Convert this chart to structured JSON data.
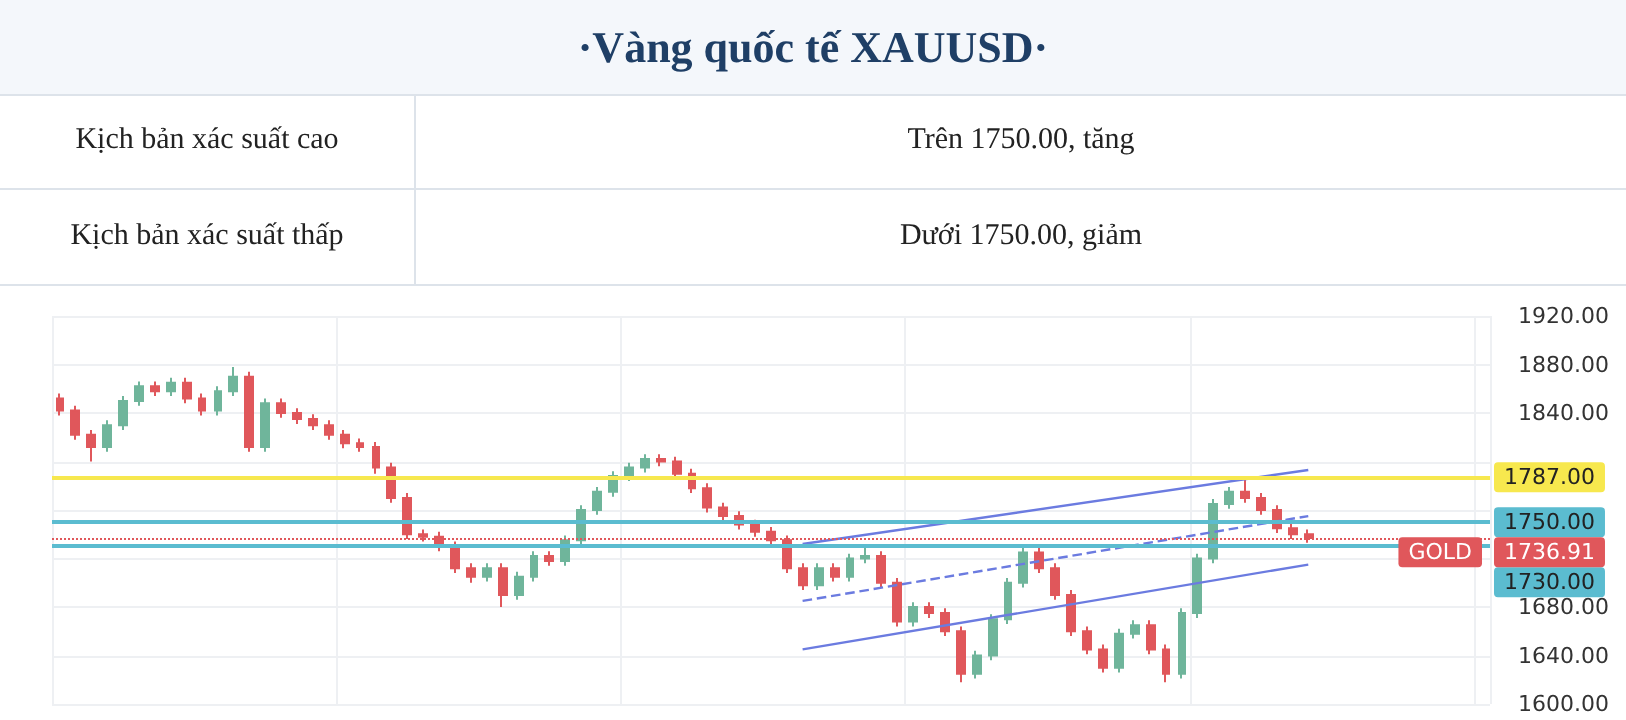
{
  "chart_data": {
    "type": "candlestick",
    "title": "·Vàng quốc tế XAUUSD·",
    "annotations": [
      "Kịch bản xác suất cao",
      "Trên 1750.00, tăng",
      "Kịch bản xác suất thấp",
      "Dưới 1750.00, giảm",
      {
        "text": "GOLD",
        "y": 1736.91
      }
    ],
    "categories": [
      null,
      null,
      null,
      null,
      null,
      null,
      null,
      null,
      null,
      null,
      null,
      null,
      null,
      null,
      null,
      null,
      null,
      null,
      null,
      null,
      null,
      null,
      null,
      null,
      null,
      null,
      null,
      null,
      null,
      null,
      null,
      null,
      null,
      null,
      null,
      null,
      null,
      null,
      null,
      null,
      null,
      null,
      null,
      null,
      null,
      null,
      null,
      null,
      null,
      null,
      null,
      null,
      null,
      null,
      null,
      null,
      null,
      null,
      null,
      null,
      null,
      null,
      null,
      null,
      null,
      null,
      null,
      null,
      null,
      null,
      null,
      null,
      null,
      null,
      null,
      null,
      null,
      null,
      null,
      null,
      null,
      null,
      null,
      null,
      null,
      null,
      null,
      null,
      null,
      null,
      null
    ],
    "ohlc": [
      [
        1852,
        1856,
        1838,
        1842
      ],
      [
        1842,
        1846,
        1818,
        1822
      ],
      [
        1822,
        1826,
        1800,
        1812
      ],
      [
        1812,
        1834,
        1808,
        1830
      ],
      [
        1830,
        1854,
        1826,
        1850
      ],
      [
        1850,
        1866,
        1846,
        1862
      ],
      [
        1862,
        1866,
        1854,
        1858
      ],
      [
        1858,
        1869,
        1854,
        1865
      ],
      [
        1865,
        1869,
        1848,
        1852
      ],
      [
        1852,
        1856,
        1838,
        1842
      ],
      [
        1842,
        1862,
        1838,
        1858
      ],
      [
        1858,
        1878,
        1854,
        1870
      ],
      [
        1870,
        1874,
        1808,
        1812
      ],
      [
        1812,
        1852,
        1808,
        1848
      ],
      [
        1848,
        1852,
        1836,
        1840
      ],
      [
        1840,
        1844,
        1831,
        1835
      ],
      [
        1835,
        1839,
        1826,
        1830
      ],
      [
        1830,
        1834,
        1818,
        1822
      ],
      [
        1822,
        1826,
        1811,
        1815
      ],
      [
        1815,
        1819,
        1808,
        1812
      ],
      [
        1812,
        1816,
        1790,
        1795
      ],
      [
        1795,
        1799,
        1766,
        1770
      ],
      [
        1770,
        1774,
        1736,
        1740
      ],
      [
        1740,
        1744,
        1734,
        1738
      ],
      [
        1738,
        1742,
        1726,
        1730
      ],
      [
        1730,
        1734,
        1708,
        1712
      ],
      [
        1712,
        1716,
        1700,
        1705
      ],
      [
        1705,
        1716,
        1701,
        1712
      ],
      [
        1712,
        1716,
        1680,
        1690
      ],
      [
        1690,
        1709,
        1686,
        1705
      ],
      [
        1705,
        1726,
        1701,
        1722
      ],
      [
        1722,
        1726,
        1714,
        1718
      ],
      [
        1718,
        1739,
        1714,
        1735
      ],
      [
        1735,
        1764,
        1731,
        1760
      ],
      [
        1760,
        1779,
        1756,
        1775
      ],
      [
        1775,
        1792,
        1771,
        1788
      ],
      [
        1788,
        1799,
        1784,
        1795
      ],
      [
        1795,
        1806,
        1791,
        1802
      ],
      [
        1802,
        1806,
        1796,
        1800
      ],
      [
        1800,
        1804,
        1786,
        1790
      ],
      [
        1790,
        1794,
        1774,
        1778
      ],
      [
        1778,
        1782,
        1758,
        1762
      ],
      [
        1762,
        1766,
        1751,
        1755
      ],
      [
        1755,
        1759,
        1744,
        1748
      ],
      [
        1748,
        1752,
        1738,
        1742
      ],
      [
        1742,
        1746,
        1731,
        1735
      ],
      [
        1735,
        1739,
        1708,
        1712
      ],
      [
        1712,
        1716,
        1694,
        1698
      ],
      [
        1698,
        1716,
        1694,
        1712
      ],
      [
        1712,
        1716,
        1701,
        1705
      ],
      [
        1705,
        1724,
        1701,
        1720
      ],
      [
        1720,
        1730,
        1716,
        1722
      ],
      [
        1722,
        1726,
        1696,
        1700
      ],
      [
        1700,
        1704,
        1664,
        1668
      ],
      [
        1668,
        1684,
        1664,
        1680
      ],
      [
        1680,
        1684,
        1671,
        1675
      ],
      [
        1675,
        1679,
        1656,
        1660
      ],
      [
        1660,
        1664,
        1618,
        1625
      ],
      [
        1625,
        1644,
        1621,
        1640
      ],
      [
        1640,
        1674,
        1636,
        1670
      ],
      [
        1670,
        1704,
        1666,
        1700
      ],
      [
        1700,
        1729,
        1696,
        1725
      ],
      [
        1725,
        1729,
        1708,
        1712
      ],
      [
        1712,
        1716,
        1686,
        1690
      ],
      [
        1690,
        1694,
        1656,
        1660
      ],
      [
        1660,
        1664,
        1641,
        1645
      ],
      [
        1645,
        1649,
        1626,
        1630
      ],
      [
        1630,
        1662,
        1626,
        1658
      ],
      [
        1658,
        1669,
        1654,
        1665
      ],
      [
        1665,
        1669,
        1641,
        1645
      ],
      [
        1645,
        1649,
        1618,
        1625
      ],
      [
        1625,
        1679,
        1621,
        1675
      ],
      [
        1675,
        1724,
        1671,
        1720
      ],
      [
        1720,
        1769,
        1716,
        1765
      ],
      [
        1765,
        1779,
        1761,
        1775
      ],
      [
        1775,
        1787,
        1766,
        1770
      ],
      [
        1770,
        1774,
        1756,
        1760
      ],
      [
        1760,
        1764,
        1741,
        1745
      ],
      [
        1745,
        1749,
        1736,
        1740
      ],
      [
        1740,
        1744,
        1733,
        1736.91
      ],
      null,
      null,
      null,
      null,
      null,
      null,
      null,
      null,
      null,
      null,
      null
    ],
    "colors": [
      "#e0575b",
      "#e0575b",
      "#e0575b",
      "#6fb59b",
      "#6fb59b",
      "#6fb59b",
      "#e0575b",
      "#6fb59b",
      "#e0575b",
      "#e0575b",
      "#6fb59b",
      "#6fb59b",
      "#e0575b",
      "#6fb59b",
      "#e0575b",
      "#e0575b",
      "#e0575b",
      "#e0575b",
      "#e0575b",
      "#e0575b",
      "#e0575b",
      "#e0575b",
      "#e0575b",
      "#e0575b",
      "#e0575b",
      "#e0575b",
      "#e0575b",
      "#6fb59b",
      "#e0575b",
      "#6fb59b",
      "#6fb59b",
      "#e0575b",
      "#6fb59b",
      "#6fb59b",
      "#6fb59b",
      "#6fb59b",
      "#6fb59b",
      "#6fb59b",
      "#e0575b",
      "#e0575b",
      "#e0575b",
      "#e0575b",
      "#e0575b",
      "#e0575b",
      "#e0575b",
      "#e0575b",
      "#e0575b",
      "#e0575b",
      "#6fb59b",
      "#e0575b",
      "#6fb59b",
      "#6fb59b",
      "#e0575b",
      "#e0575b",
      "#6fb59b",
      "#e0575b",
      "#e0575b",
      "#e0575b",
      "#6fb59b",
      "#6fb59b",
      "#6fb59b",
      "#6fb59b",
      "#e0575b",
      "#e0575b",
      "#e0575b",
      "#e0575b",
      "#e0575b",
      "#6fb59b",
      "#6fb59b",
      "#e0575b",
      "#e0575b",
      "#6fb59b",
      "#6fb59b",
      "#6fb59b",
      "#6fb59b",
      "#e0575b",
      "#e0575b",
      "#e0575b",
      "#e0575b",
      "#e0575b",
      null,
      null,
      null,
      null,
      null,
      null,
      null,
      null,
      null,
      null,
      null
    ],
    "series": [
      {
        "type": "line",
        "color": "#6b7be0",
        "line_style": "solid",
        "values": [
          null,
          null,
          null,
          null,
          null,
          null,
          null,
          null,
          null,
          null,
          null,
          null,
          null,
          null,
          null,
          null,
          null,
          null,
          null,
          null,
          null,
          null,
          null,
          null,
          null,
          null,
          null,
          null,
          null,
          null,
          null,
          null,
          null,
          null,
          null,
          null,
          null,
          null,
          null,
          null,
          null,
          null,
          null,
          null,
          null,
          null,
          null,
          1732,
          null,
          null,
          null,
          null,
          null,
          null,
          null,
          null,
          null,
          null,
          null,
          null,
          null,
          null,
          null,
          null,
          null,
          null,
          null,
          null,
          null,
          null,
          null,
          null,
          null,
          null,
          null,
          null,
          null,
          null,
          null,
          1793,
          null,
          null,
          null,
          null,
          null,
          null,
          null,
          null,
          null,
          null,
          null
        ]
      },
      {
        "type": "line",
        "color": "#6b7be0",
        "line_style": "dashed",
        "values": [
          null,
          null,
          null,
          null,
          null,
          null,
          null,
          null,
          null,
          null,
          null,
          null,
          null,
          null,
          null,
          null,
          null,
          null,
          null,
          null,
          null,
          null,
          null,
          null,
          null,
          null,
          null,
          null,
          null,
          null,
          null,
          null,
          null,
          null,
          null,
          null,
          null,
          null,
          null,
          null,
          null,
          null,
          null,
          null,
          null,
          null,
          null,
          1685,
          null,
          null,
          null,
          null,
          null,
          null,
          null,
          null,
          null,
          null,
          null,
          null,
          null,
          null,
          null,
          null,
          null,
          null,
          null,
          null,
          null,
          null,
          null,
          null,
          null,
          null,
          null,
          null,
          null,
          null,
          null,
          1755,
          null,
          null,
          null,
          null,
          null,
          null,
          null,
          null,
          null,
          null,
          null
        ]
      },
      {
        "type": "line",
        "color": "#6b7be0",
        "line_style": "solid",
        "values": [
          null,
          null,
          null,
          null,
          null,
          null,
          null,
          null,
          null,
          null,
          null,
          null,
          null,
          null,
          null,
          null,
          null,
          null,
          null,
          null,
          null,
          null,
          null,
          null,
          null,
          null,
          null,
          null,
          null,
          null,
          null,
          null,
          null,
          null,
          null,
          null,
          null,
          null,
          null,
          null,
          null,
          null,
          null,
          null,
          null,
          null,
          null,
          1645,
          null,
          null,
          null,
          null,
          null,
          null,
          null,
          null,
          null,
          null,
          null,
          null,
          null,
          null,
          null,
          null,
          null,
          null,
          null,
          null,
          null,
          null,
          null,
          null,
          null,
          null,
          null,
          null,
          null,
          null,
          null,
          1715,
          null,
          null,
          null,
          null,
          null,
          null,
          null,
          null,
          null,
          null,
          null
        ]
      }
    ],
    "ref_lines": [
      {
        "axis": "y",
        "value": 1787,
        "label": "1787.00",
        "color": "#f7e84e",
        "line_style": "solid"
      },
      {
        "axis": "y",
        "value": 1750,
        "label": "1750.00",
        "color": "#5bbcd0",
        "line_style": "solid"
      },
      {
        "axis": "y",
        "value": 1730,
        "label": "1730.00",
        "color": "#5bbcd0",
        "line_style": "solid"
      },
      {
        "axis": "y",
        "value": 1736.91,
        "label": "1736.91",
        "color": "#e0575b",
        "line_style": "dotted"
      }
    ],
    "ylim": [
      1600,
      1920
    ],
    "yticks": [
      {
        "value": 1600,
        "label": "1600.00"
      },
      {
        "value": 1640,
        "label": "1640.00"
      },
      {
        "value": 1680,
        "label": "1680.00"
      },
      {
        "value": 1720,
        "label": null
      },
      {
        "value": 1760,
        "label": null
      },
      {
        "value": 1800,
        "label": null
      },
      {
        "value": 1840,
        "label": "1840.00"
      },
      {
        "value": 1880,
        "label": "1880.00"
      },
      {
        "value": 1920,
        "label": "1920.00"
      }
    ],
    "tick_labels": "y",
    "grid": true
  }
}
